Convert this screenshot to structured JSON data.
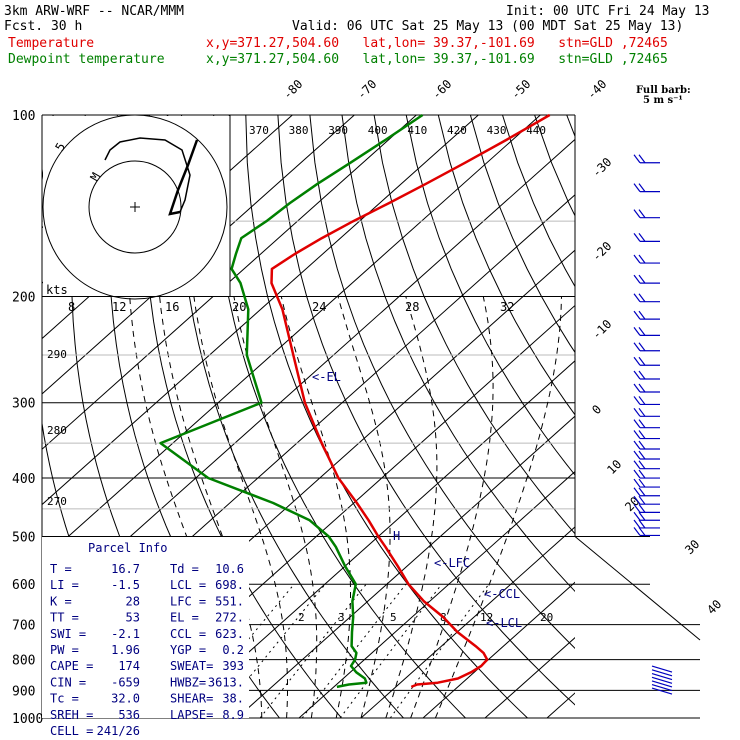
{
  "header": {
    "model": "3km ARW-WRF -- NCAR/MMM",
    "init": "Init: 00 UTC Fri 24 May 13",
    "fcst": "Fcst.    30 h",
    "valid": "Valid: 06 UTC Sat 25 May 13 (00 MDT Sat 25 May 13)",
    "temp_label": "Temperature",
    "dew_label": "Dewpoint temperature",
    "temp_loc": "x,y=371.27,504.60   lat,lon= 39.37,-101.69   stn=GLD ,72465",
    "dew_loc": "x,y=371.27,504.60   lat,lon= 39.37,-101.69   stn=GLD ,72465"
  },
  "colors": {
    "temperature": "#e00000",
    "dewpoint": "#008000",
    "annotation": "#000080",
    "wind": "#0000c0"
  },
  "barb_legend": {
    "title": "Full barb:",
    "value": "5 m s⁻¹"
  },
  "parcel_info": {
    "title": "Parcel Info",
    "rows": [
      [
        "T  =",
        "16.7",
        "Td =",
        "10.6"
      ],
      [
        "LI =",
        "-1.5",
        "LCL =",
        "698."
      ],
      [
        "K  =",
        "28",
        "LFC =",
        "551."
      ],
      [
        "TT =",
        "53",
        "EL  =",
        "272."
      ],
      [
        "SWI =",
        "-2.1",
        "CCL =",
        "623."
      ],
      [
        "PW =",
        "1.96",
        "YGP =",
        "0.2"
      ],
      [
        "CAPE =",
        "174",
        "SWEAT=",
        "393"
      ],
      [
        "CIN =",
        "-659",
        "HWBZ=",
        "3613."
      ],
      [
        "Tc =",
        "32.0",
        "SHEAR=",
        "38."
      ],
      [
        "SREH =",
        "536",
        "LAPSE=",
        "8.9"
      ],
      [
        "CELL =",
        "241/26",
        "",
        ""
      ]
    ]
  },
  "levels_labels": {
    "el": "<-EL",
    "lfc": "<-LFC",
    "ccl": "<-CCL",
    "lcl": "<-LCL"
  },
  "hodograph": {
    "kts_label": "kts",
    "ring_speed": "5",
    "inner_label": "M",
    "speed_ticks": [
      "8",
      "12",
      "16",
      "20",
      "24",
      "28",
      "32"
    ]
  },
  "chart_data": {
    "type": "line",
    "title": "",
    "xlabel": "",
    "ylabel": "",
    "y_axis": "pressure (hPa), log scale, reversed",
    "ylim": [
      1000,
      100
    ],
    "pressure_ticks": [
      100,
      200,
      300,
      400,
      500,
      600,
      700,
      800,
      900,
      1000
    ],
    "isotherm_labels": [
      -80,
      -70,
      -60,
      -50,
      -40,
      -30,
      -20,
      -10,
      0,
      10,
      20,
      30,
      40
    ],
    "theta_labels": [
      370,
      380,
      390,
      400,
      410,
      420,
      430,
      440
    ],
    "theta_low_labels": [
      290,
      280,
      270
    ],
    "mixing_ratio_labels": [
      2,
      3,
      5,
      8,
      12,
      20
    ],
    "series": [
      {
        "name": "Temperature",
        "pressure": [
          888,
          880,
          874,
          860,
          840,
          820,
          800,
          780,
          760,
          720,
          680,
          640,
          600,
          560,
          520,
          500,
          470,
          440,
          400,
          350,
          300,
          250,
          210,
          190,
          180,
          170,
          160,
          150,
          140,
          130,
          120,
          110,
          100
        ],
        "temperature": [
          22.5,
          23.0,
          26.0,
          28.5,
          29.5,
          30.0,
          29.8,
          28.0,
          25.5,
          20.0,
          15.0,
          9.0,
          3.5,
          -1.5,
          -7.0,
          -10.0,
          -14.5,
          -19.5,
          -27.0,
          -36.0,
          -46.0,
          -56.5,
          -66.5,
          -73.0,
          -75.5,
          -74.5,
          -73.0,
          -71.0,
          -68.5,
          -66.0,
          -63.5,
          -61.0,
          -58.5
        ]
      },
      {
        "name": "Dewpoint temperature",
        "pressure": [
          888,
          880,
          874,
          860,
          840,
          820,
          800,
          780,
          760,
          720,
          680,
          640,
          600,
          560,
          520,
          500,
          470,
          440,
          400,
          350,
          300,
          250,
          210,
          190,
          180,
          170,
          160,
          150,
          140,
          130,
          120,
          110,
          100
        ],
        "dewpoint": [
          10.5,
          12.0,
          14.5,
          13.5,
          11.0,
          9.0,
          8.5,
          7.5,
          5.5,
          3.0,
          0.5,
          -2.5,
          -5.0,
          -10.0,
          -15.0,
          -18.0,
          -24.0,
          -33.0,
          -48.0,
          -62.0,
          -53.0,
          -64.0,
          -72.0,
          -78.0,
          -82.0,
          -84.0,
          -86.0,
          -85.0,
          -84.5,
          -83.5,
          -82.0,
          -80.5,
          -79.0
        ]
      }
    ],
    "annotation_levels": {
      "EL": 272,
      "LFC": 551,
      "CCL": 623,
      "LCL": 698
    },
    "hodograph_points": [
      [
        0,
        0
      ],
      [
        -3,
        7
      ],
      [
        -8,
        10
      ],
      [
        -12,
        13
      ],
      [
        -14,
        17
      ],
      [
        -10,
        21
      ],
      [
        -4,
        22
      ],
      [
        2,
        20
      ],
      [
        5,
        16
      ],
      [
        4,
        11
      ],
      [
        3,
        7
      ],
      [
        5,
        4
      ]
    ]
  }
}
